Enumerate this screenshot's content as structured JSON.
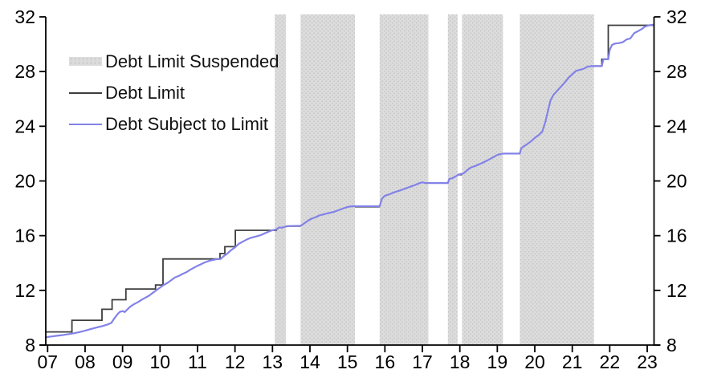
{
  "legend": {
    "items": [
      {
        "label": "Debt Limit Suspended",
        "type": "band",
        "color": "#dcdcdc"
      },
      {
        "label": "Debt Limit",
        "type": "line",
        "color": "#3d3d3d"
      },
      {
        "label": "Debt Subject to Limit",
        "type": "line",
        "color": "#8282e8"
      }
    ]
  },
  "chart_data": {
    "type": "line",
    "title": "",
    "xlabel": "",
    "ylabel": "",
    "xlim": [
      6.95,
      23.21
    ],
    "ylim": [
      8,
      32
    ],
    "grid": false,
    "legend_position": "top-left-inside",
    "y_ticks": [
      8,
      12,
      16,
      20,
      24,
      28,
      32
    ],
    "y_axis_sides": [
      "left",
      "right"
    ],
    "x_ticks": [
      {
        "value": 7,
        "label": "07"
      },
      {
        "value": 8,
        "label": "08"
      },
      {
        "value": 9,
        "label": "09"
      },
      {
        "value": 10,
        "label": "10"
      },
      {
        "value": 11,
        "label": "11"
      },
      {
        "value": 12,
        "label": "12"
      },
      {
        "value": 13,
        "label": "13"
      },
      {
        "value": 14,
        "label": "14"
      },
      {
        "value": 15,
        "label": "15"
      },
      {
        "value": 16,
        "label": "16"
      },
      {
        "value": 17,
        "label": "17"
      },
      {
        "value": 18,
        "label": "18"
      },
      {
        "value": 19,
        "label": "19"
      },
      {
        "value": 20,
        "label": "20"
      },
      {
        "value": 21,
        "label": "21"
      },
      {
        "value": 22,
        "label": "22"
      },
      {
        "value": 23,
        "label": "23"
      }
    ],
    "suspension_bands": [
      [
        13.06,
        13.36
      ],
      [
        13.75,
        15.2
      ],
      [
        15.86,
        17.16
      ],
      [
        17.68,
        17.94
      ],
      [
        18.06,
        19.15
      ],
      [
        19.6,
        21.58
      ]
    ],
    "band_fill": "#dcdcdc",
    "band_dot_color": "#c3c3c3",
    "series": [
      {
        "name": "Debt Limit",
        "color": "#3d3d3d",
        "style": "step",
        "segments": [
          [
            [
              6.95,
              8.965
            ],
            [
              7.65,
              8.965
            ],
            [
              7.65,
              9.815
            ],
            [
              8.45,
              9.815
            ],
            [
              8.45,
              10.615
            ],
            [
              8.72,
              10.615
            ],
            [
              8.72,
              11.315
            ],
            [
              9.09,
              11.315
            ],
            [
              9.09,
              12.104
            ],
            [
              9.88,
              12.104
            ],
            [
              9.88,
              12.394
            ],
            [
              10.08,
              12.394
            ],
            [
              10.08,
              14.294
            ],
            [
              11.6,
              14.294
            ],
            [
              11.6,
              14.694
            ],
            [
              11.73,
              14.694
            ],
            [
              11.73,
              15.194
            ],
            [
              12.01,
              15.194
            ],
            [
              12.01,
              16.394
            ],
            [
              13.12,
              16.394
            ]
          ],
          [
            [
              13.36,
              16.699
            ],
            [
              13.75,
              16.699
            ]
          ],
          [
            [
              15.2,
              18.113
            ],
            [
              15.86,
              18.113
            ]
          ],
          [
            [
              17.16,
              19.847
            ],
            [
              17.68,
              19.847
            ]
          ],
          [
            [
              17.94,
              20.456
            ],
            [
              18.06,
              20.456
            ]
          ],
          [
            [
              19.15,
              21.988
            ],
            [
              19.6,
              21.988
            ]
          ],
          [
            [
              21.58,
              28.401
            ],
            [
              21.79,
              28.401
            ],
            [
              21.79,
              28.9
            ],
            [
              21.96,
              28.9
            ],
            [
              21.96,
              31.381
            ],
            [
              23.17,
              31.381
            ]
          ]
        ]
      },
      {
        "name": "Debt Subject to Limit",
        "color": "#8282e8",
        "style": "line",
        "points": [
          [
            6.95,
            8.57
          ],
          [
            7.1,
            8.63
          ],
          [
            7.25,
            8.68
          ],
          [
            7.4,
            8.73
          ],
          [
            7.55,
            8.8
          ],
          [
            7.7,
            8.86
          ],
          [
            7.85,
            8.95
          ],
          [
            8.0,
            9.05
          ],
          [
            8.15,
            9.17
          ],
          [
            8.3,
            9.28
          ],
          [
            8.45,
            9.38
          ],
          [
            8.6,
            9.5
          ],
          [
            8.7,
            9.62
          ],
          [
            8.78,
            9.95
          ],
          [
            8.85,
            10.2
          ],
          [
            8.92,
            10.42
          ],
          [
            9.0,
            10.48
          ],
          [
            9.06,
            10.42
          ],
          [
            9.12,
            10.58
          ],
          [
            9.2,
            10.8
          ],
          [
            9.3,
            10.98
          ],
          [
            9.4,
            11.12
          ],
          [
            9.5,
            11.3
          ],
          [
            9.6,
            11.45
          ],
          [
            9.7,
            11.6
          ],
          [
            9.8,
            11.8
          ],
          [
            9.9,
            12.0
          ],
          [
            10.0,
            12.2
          ],
          [
            10.1,
            12.4
          ],
          [
            10.2,
            12.55
          ],
          [
            10.3,
            12.75
          ],
          [
            10.4,
            12.95
          ],
          [
            10.5,
            13.05
          ],
          [
            10.6,
            13.2
          ],
          [
            10.7,
            13.32
          ],
          [
            10.8,
            13.5
          ],
          [
            10.9,
            13.65
          ],
          [
            11.0,
            13.8
          ],
          [
            11.1,
            13.92
          ],
          [
            11.2,
            14.05
          ],
          [
            11.3,
            14.15
          ],
          [
            11.4,
            14.22
          ],
          [
            11.5,
            14.28
          ],
          [
            11.62,
            14.3
          ],
          [
            11.7,
            14.5
          ],
          [
            11.8,
            14.7
          ],
          [
            11.9,
            14.95
          ],
          [
            12.0,
            15.15
          ],
          [
            12.1,
            15.4
          ],
          [
            12.2,
            15.55
          ],
          [
            12.3,
            15.7
          ],
          [
            12.4,
            15.82
          ],
          [
            12.5,
            15.9
          ],
          [
            12.6,
            15.97
          ],
          [
            12.7,
            16.05
          ],
          [
            12.8,
            16.18
          ],
          [
            12.9,
            16.3
          ],
          [
            13.0,
            16.4
          ],
          [
            13.1,
            16.45
          ],
          [
            13.18,
            16.6
          ],
          [
            13.25,
            16.58
          ],
          [
            13.33,
            16.65
          ],
          [
            13.45,
            16.7
          ],
          [
            13.75,
            16.72
          ],
          [
            13.85,
            16.9
          ],
          [
            13.95,
            17.1
          ],
          [
            14.05,
            17.25
          ],
          [
            14.15,
            17.35
          ],
          [
            14.25,
            17.48
          ],
          [
            14.35,
            17.55
          ],
          [
            14.45,
            17.62
          ],
          [
            14.55,
            17.68
          ],
          [
            14.65,
            17.75
          ],
          [
            14.75,
            17.85
          ],
          [
            14.85,
            17.95
          ],
          [
            14.95,
            18.05
          ],
          [
            15.05,
            18.12
          ],
          [
            15.15,
            18.15
          ],
          [
            15.86,
            18.15
          ],
          [
            15.92,
            18.7
          ],
          [
            16.0,
            18.92
          ],
          [
            16.1,
            19.0
          ],
          [
            16.2,
            19.12
          ],
          [
            16.3,
            19.22
          ],
          [
            16.4,
            19.3
          ],
          [
            16.5,
            19.4
          ],
          [
            16.6,
            19.5
          ],
          [
            16.7,
            19.6
          ],
          [
            16.8,
            19.7
          ],
          [
            16.9,
            19.82
          ],
          [
            17.0,
            19.9
          ],
          [
            17.08,
            19.85
          ],
          [
            17.68,
            19.85
          ],
          [
            17.72,
            20.15
          ],
          [
            17.8,
            20.2
          ],
          [
            17.9,
            20.35
          ],
          [
            17.98,
            20.48
          ],
          [
            18.1,
            20.55
          ],
          [
            18.2,
            20.8
          ],
          [
            18.3,
            21.0
          ],
          [
            18.4,
            21.08
          ],
          [
            18.5,
            21.2
          ],
          [
            18.6,
            21.32
          ],
          [
            18.7,
            21.45
          ],
          [
            18.8,
            21.6
          ],
          [
            18.9,
            21.75
          ],
          [
            19.0,
            21.9
          ],
          [
            19.1,
            21.98
          ],
          [
            19.18,
            22.0
          ],
          [
            19.6,
            22.0
          ],
          [
            19.64,
            22.4
          ],
          [
            19.72,
            22.55
          ],
          [
            19.8,
            22.7
          ],
          [
            19.9,
            22.9
          ],
          [
            20.0,
            23.15
          ],
          [
            20.1,
            23.35
          ],
          [
            20.2,
            23.6
          ],
          [
            20.28,
            24.3
          ],
          [
            20.35,
            25.1
          ],
          [
            20.42,
            25.9
          ],
          [
            20.5,
            26.3
          ],
          [
            20.6,
            26.6
          ],
          [
            20.7,
            26.9
          ],
          [
            20.8,
            27.2
          ],
          [
            20.9,
            27.55
          ],
          [
            21.0,
            27.8
          ],
          [
            21.1,
            28.05
          ],
          [
            21.2,
            28.12
          ],
          [
            21.3,
            28.2
          ],
          [
            21.4,
            28.35
          ],
          [
            21.5,
            28.4
          ],
          [
            21.79,
            28.4
          ],
          [
            21.83,
            28.9
          ],
          [
            21.96,
            28.92
          ],
          [
            22.0,
            29.6
          ],
          [
            22.06,
            29.95
          ],
          [
            22.15,
            30.05
          ],
          [
            22.25,
            30.08
          ],
          [
            22.35,
            30.15
          ],
          [
            22.45,
            30.35
          ],
          [
            22.55,
            30.42
          ],
          [
            22.65,
            30.8
          ],
          [
            22.75,
            30.95
          ],
          [
            22.85,
            31.1
          ],
          [
            22.95,
            31.3
          ],
          [
            23.08,
            31.4
          ],
          [
            23.17,
            31.42
          ]
        ]
      }
    ]
  }
}
